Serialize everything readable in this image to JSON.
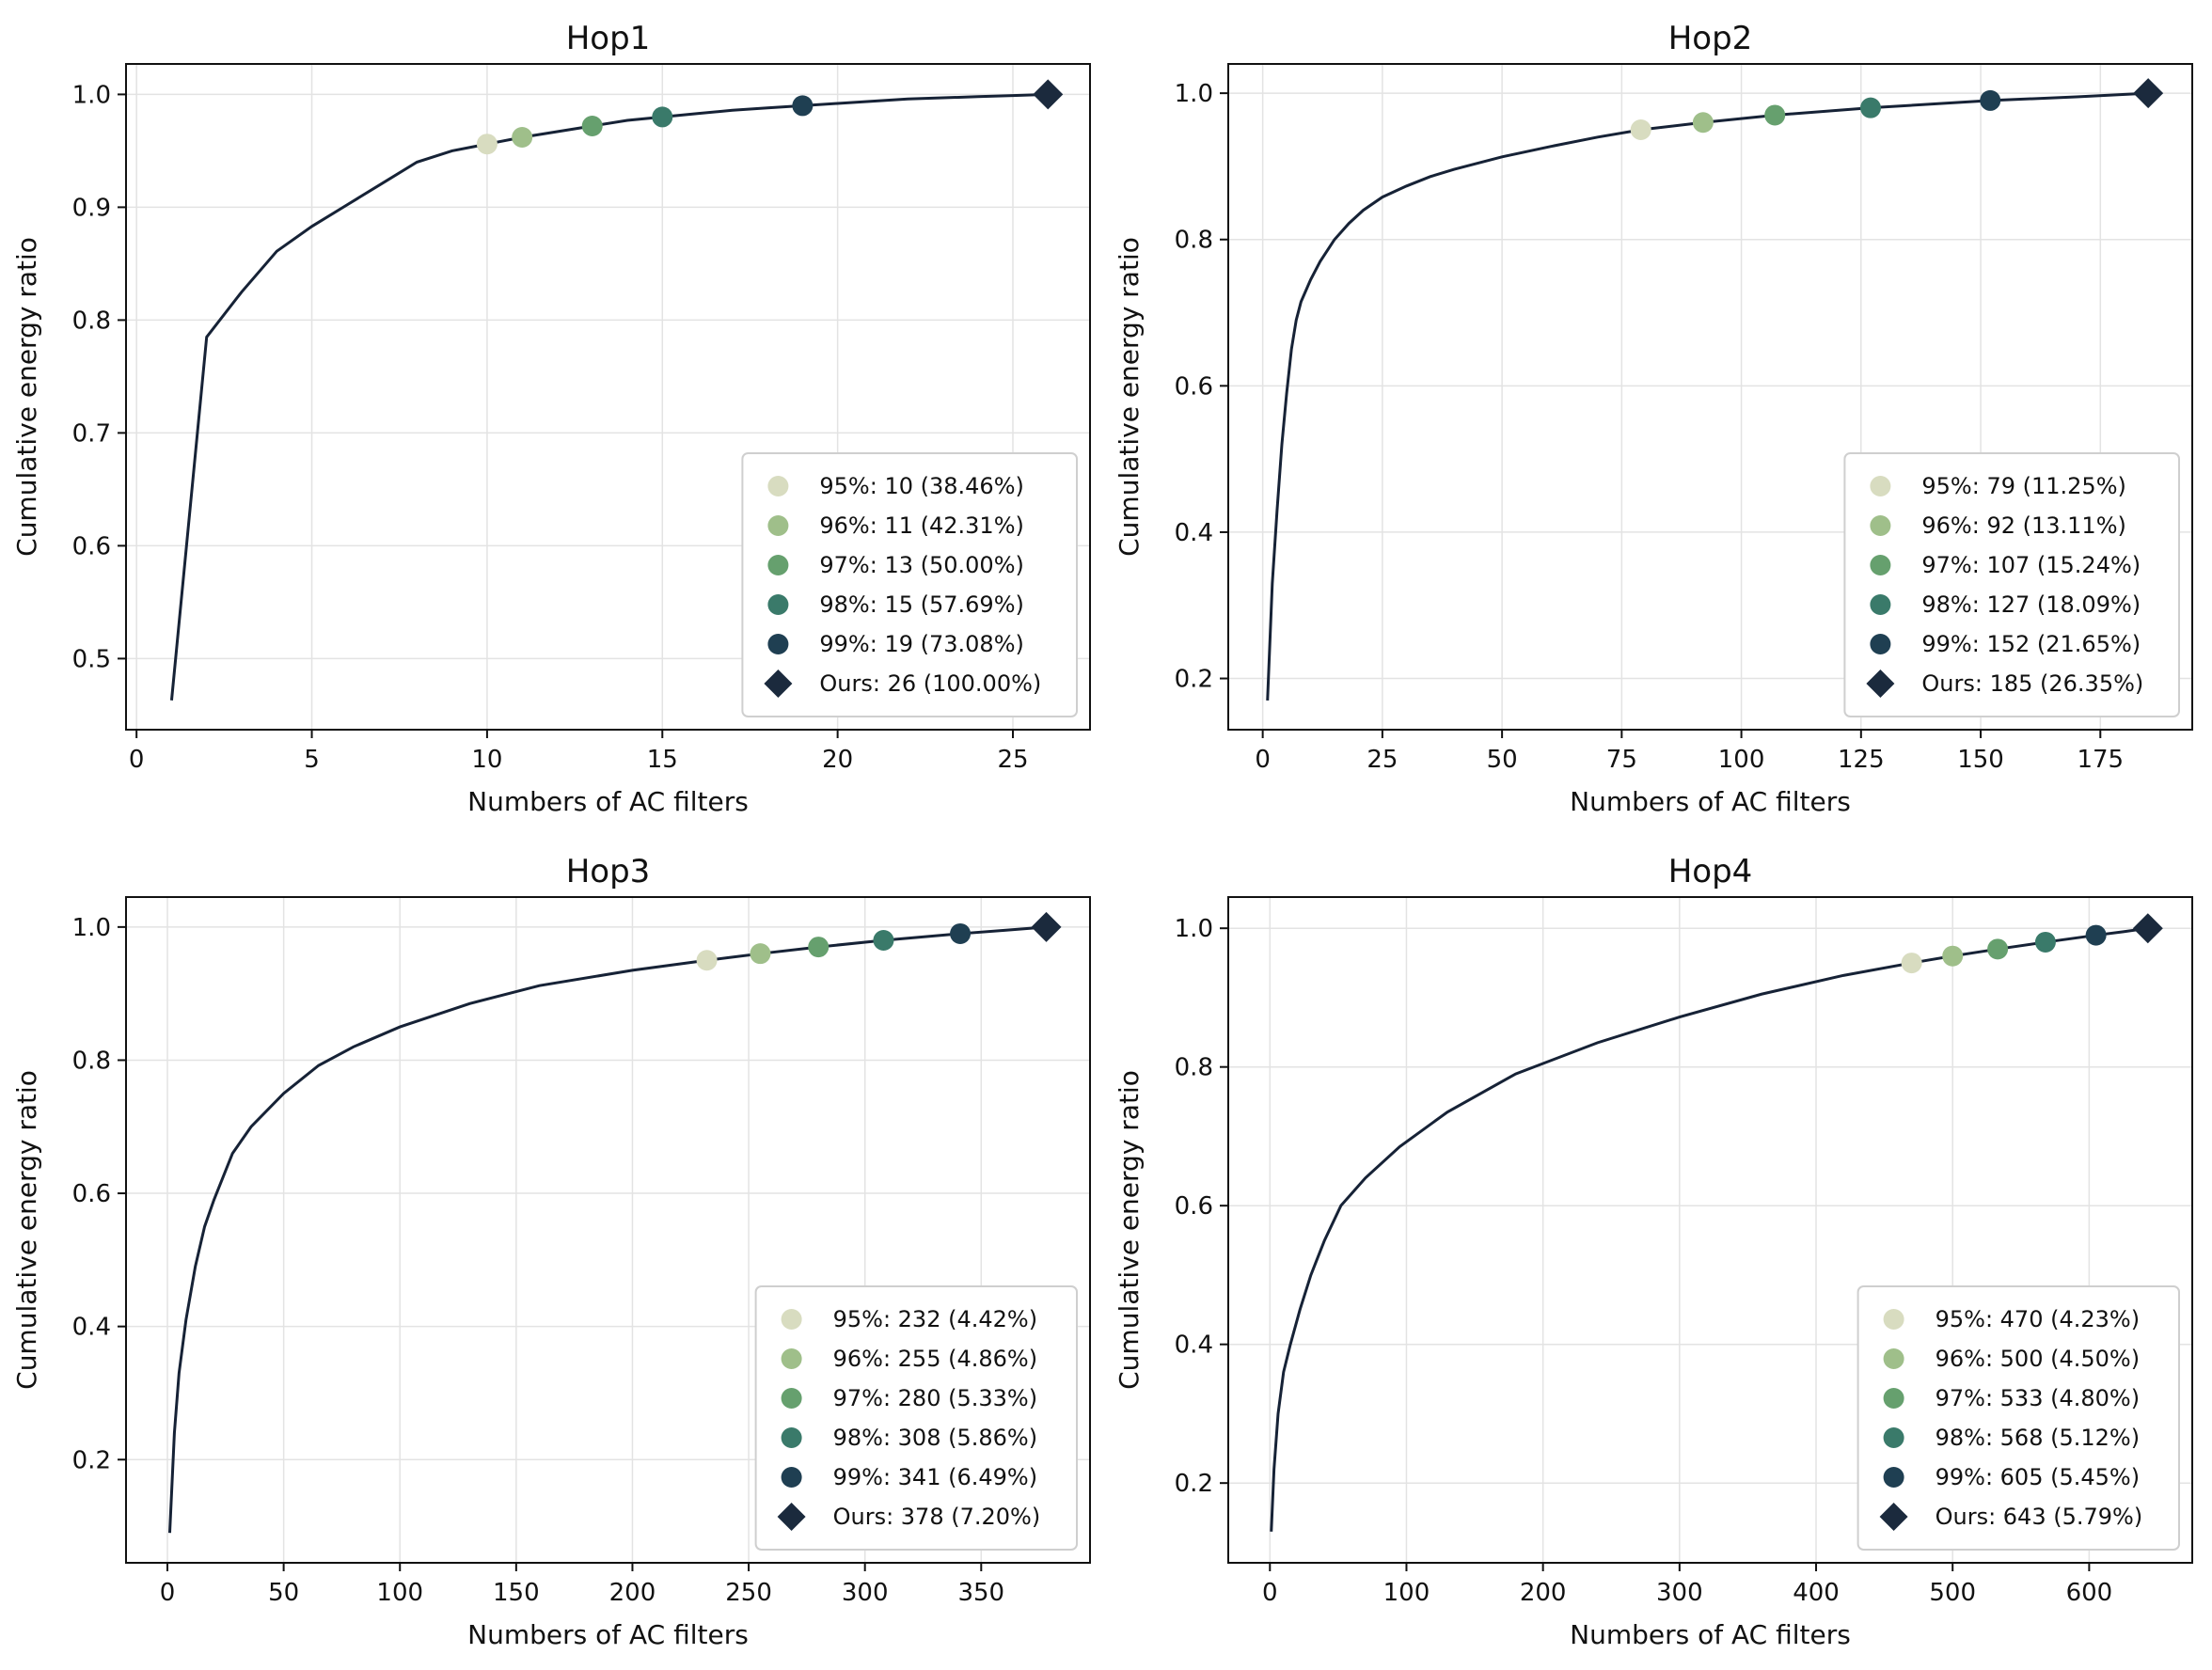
{
  "colors": {
    "curve": "#162236",
    "markers": [
      "#d8dcc0",
      "#9fbf8a",
      "#66a06e",
      "#3a7a6a",
      "#1f3f52",
      "#1b2a3d"
    ]
  },
  "chart_data": [
    {
      "type": "line",
      "title": "Hop1",
      "xlabel": "Numbers of AC filters",
      "ylabel": "Cumulative energy ratio",
      "xlim": [
        -0.3,
        27.2
      ],
      "ylim": [
        0.437,
        1.027
      ],
      "xticks": [
        0,
        5,
        10,
        15,
        20,
        25
      ],
      "yticks": [
        0.5,
        0.6,
        0.7,
        0.8,
        0.9,
        1.0
      ],
      "xtick_labels": [
        "0",
        "5",
        "10",
        "15",
        "20",
        "25"
      ],
      "ytick_labels": [
        "0.5",
        "0.6",
        "0.7",
        "0.8",
        "0.9",
        "1.0"
      ],
      "x": [
        1,
        2,
        3,
        4,
        5,
        6,
        7,
        8,
        9,
        10,
        11,
        12,
        13,
        14,
        15,
        16,
        17,
        18,
        19,
        20,
        21,
        22,
        23,
        24,
        25,
        26
      ],
      "y": [
        0.463,
        0.785,
        0.825,
        0.861,
        0.883,
        0.902,
        0.921,
        0.94,
        0.95,
        0.956,
        0.962,
        0.967,
        0.972,
        0.977,
        0.98,
        0.983,
        0.986,
        0.988,
        0.99,
        0.992,
        0.994,
        0.996,
        0.997,
        0.998,
        0.999,
        1.0
      ],
      "markers": [
        {
          "x": 10,
          "y": 0.956,
          "label": "95%: 10 (38.46%)"
        },
        {
          "x": 11,
          "y": 0.962,
          "label": "96%: 11 (42.31%)"
        },
        {
          "x": 13,
          "y": 0.972,
          "label": "97%: 13 (50.00%)"
        },
        {
          "x": 15,
          "y": 0.98,
          "label": "98%: 15 (57.69%)"
        },
        {
          "x": 19,
          "y": 0.99,
          "label": "99%: 19 (73.08%)"
        },
        {
          "x": 26,
          "y": 1.0,
          "label": "Ours: 26 (100.00%)"
        }
      ],
      "legend_position": "lower-right"
    },
    {
      "type": "line",
      "title": "Hop2",
      "xlabel": "Numbers of AC filters",
      "ylabel": "Cumulative energy ratio",
      "xlim": [
        -7.2,
        194.2
      ],
      "ylim": [
        0.13,
        1.04
      ],
      "xticks": [
        0,
        25,
        50,
        75,
        100,
        125,
        150,
        175
      ],
      "yticks": [
        0.2,
        0.4,
        0.6,
        0.8,
        1.0
      ],
      "xtick_labels": [
        "0",
        "25",
        "50",
        "75",
        "100",
        "125",
        "150",
        "175"
      ],
      "ytick_labels": [
        "0.2",
        "0.4",
        "0.6",
        "0.8",
        "1.0"
      ],
      "x": [
        1,
        2,
        3,
        4,
        5,
        6,
        7,
        8,
        10,
        12,
        15,
        18,
        21,
        25,
        30,
        35,
        40,
        50,
        60,
        70,
        79,
        92,
        107,
        127,
        152,
        170,
        185
      ],
      "y": [
        0.17,
        0.33,
        0.43,
        0.52,
        0.59,
        0.65,
        0.69,
        0.715,
        0.745,
        0.77,
        0.8,
        0.822,
        0.84,
        0.858,
        0.873,
        0.886,
        0.896,
        0.913,
        0.927,
        0.94,
        0.95,
        0.96,
        0.97,
        0.98,
        0.99,
        0.995,
        1.0
      ],
      "markers": [
        {
          "x": 79,
          "y": 0.95,
          "label": "95%: 79 (11.25%)"
        },
        {
          "x": 92,
          "y": 0.96,
          "label": "96%: 92 (13.11%)"
        },
        {
          "x": 107,
          "y": 0.97,
          "label": "97%: 107 (15.24%)"
        },
        {
          "x": 127,
          "y": 0.98,
          "label": "98%: 127 (18.09%)"
        },
        {
          "x": 152,
          "y": 0.99,
          "label": "99%: 152 (21.65%)"
        },
        {
          "x": 185,
          "y": 1.0,
          "label": "Ours: 185 (26.35%)"
        }
      ],
      "legend_position": "lower-right"
    },
    {
      "type": "line",
      "title": "Hop3",
      "xlabel": "Numbers of AC filters",
      "ylabel": "Cumulative energy ratio",
      "xlim": [
        -17.8,
        396.8
      ],
      "ylim": [
        0.045,
        1.045
      ],
      "xticks": [
        0,
        50,
        100,
        150,
        200,
        250,
        300,
        350
      ],
      "yticks": [
        0.2,
        0.4,
        0.6,
        0.8,
        1.0
      ],
      "xtick_labels": [
        "0",
        "50",
        "100",
        "150",
        "200",
        "250",
        "300",
        "350"
      ],
      "ytick_labels": [
        "0.2",
        "0.4",
        "0.6",
        "0.8",
        "1.0"
      ],
      "x": [
        1,
        3,
        5,
        8,
        12,
        16,
        20,
        28,
        36,
        50,
        65,
        80,
        100,
        130,
        160,
        200,
        232,
        255,
        280,
        308,
        341,
        360,
        378
      ],
      "y": [
        0.09,
        0.24,
        0.33,
        0.41,
        0.49,
        0.55,
        0.59,
        0.66,
        0.7,
        0.75,
        0.792,
        0.82,
        0.85,
        0.885,
        0.912,
        0.935,
        0.95,
        0.96,
        0.97,
        0.98,
        0.99,
        0.995,
        1.0
      ],
      "markers": [
        {
          "x": 232,
          "y": 0.95,
          "label": "95%: 232 (4.42%)"
        },
        {
          "x": 255,
          "y": 0.96,
          "label": "96%: 255 (4.86%)"
        },
        {
          "x": 280,
          "y": 0.97,
          "label": "97%: 280 (5.33%)"
        },
        {
          "x": 308,
          "y": 0.98,
          "label": "98%: 308 (5.86%)"
        },
        {
          "x": 341,
          "y": 0.99,
          "label": "99%: 341 (6.49%)"
        },
        {
          "x": 378,
          "y": 1.0,
          "label": "Ours: 378 (7.20%)"
        }
      ],
      "legend_position": "lower-right"
    },
    {
      "type": "line",
      "title": "Hop4",
      "xlabel": "Numbers of AC filters",
      "ylabel": "Cumulative energy ratio",
      "xlim": [
        -30.5,
        675.5
      ],
      "ylim": [
        0.085,
        1.045
      ],
      "xticks": [
        0,
        100,
        200,
        300,
        400,
        500,
        600
      ],
      "yticks": [
        0.2,
        0.4,
        0.6,
        0.8,
        1.0
      ],
      "xtick_labels": [
        "0",
        "100",
        "200",
        "300",
        "400",
        "500",
        "600"
      ],
      "ytick_labels": [
        "0.2",
        "0.4",
        "0.6",
        "0.8",
        "1.0"
      ],
      "x": [
        1,
        3,
        6,
        10,
        15,
        22,
        30,
        40,
        52,
        70,
        95,
        130,
        180,
        240,
        300,
        360,
        420,
        470,
        500,
        533,
        568,
        605,
        625,
        643
      ],
      "y": [
        0.13,
        0.22,
        0.3,
        0.36,
        0.4,
        0.45,
        0.5,
        0.55,
        0.6,
        0.64,
        0.685,
        0.735,
        0.79,
        0.835,
        0.872,
        0.905,
        0.932,
        0.95,
        0.96,
        0.97,
        0.98,
        0.99,
        0.995,
        1.0
      ],
      "markers": [
        {
          "x": 470,
          "y": 0.95,
          "label": "95%: 470 (4.23%)"
        },
        {
          "x": 500,
          "y": 0.96,
          "label": "96%: 500 (4.50%)"
        },
        {
          "x": 533,
          "y": 0.97,
          "label": "97%: 533 (4.80%)"
        },
        {
          "x": 568,
          "y": 0.98,
          "label": "98%: 568 (5.12%)"
        },
        {
          "x": 605,
          "y": 0.99,
          "label": "99%: 605 (5.45%)"
        },
        {
          "x": 643,
          "y": 1.0,
          "label": "Ours: 643 (5.79%)"
        }
      ],
      "legend_position": "lower-right"
    }
  ]
}
